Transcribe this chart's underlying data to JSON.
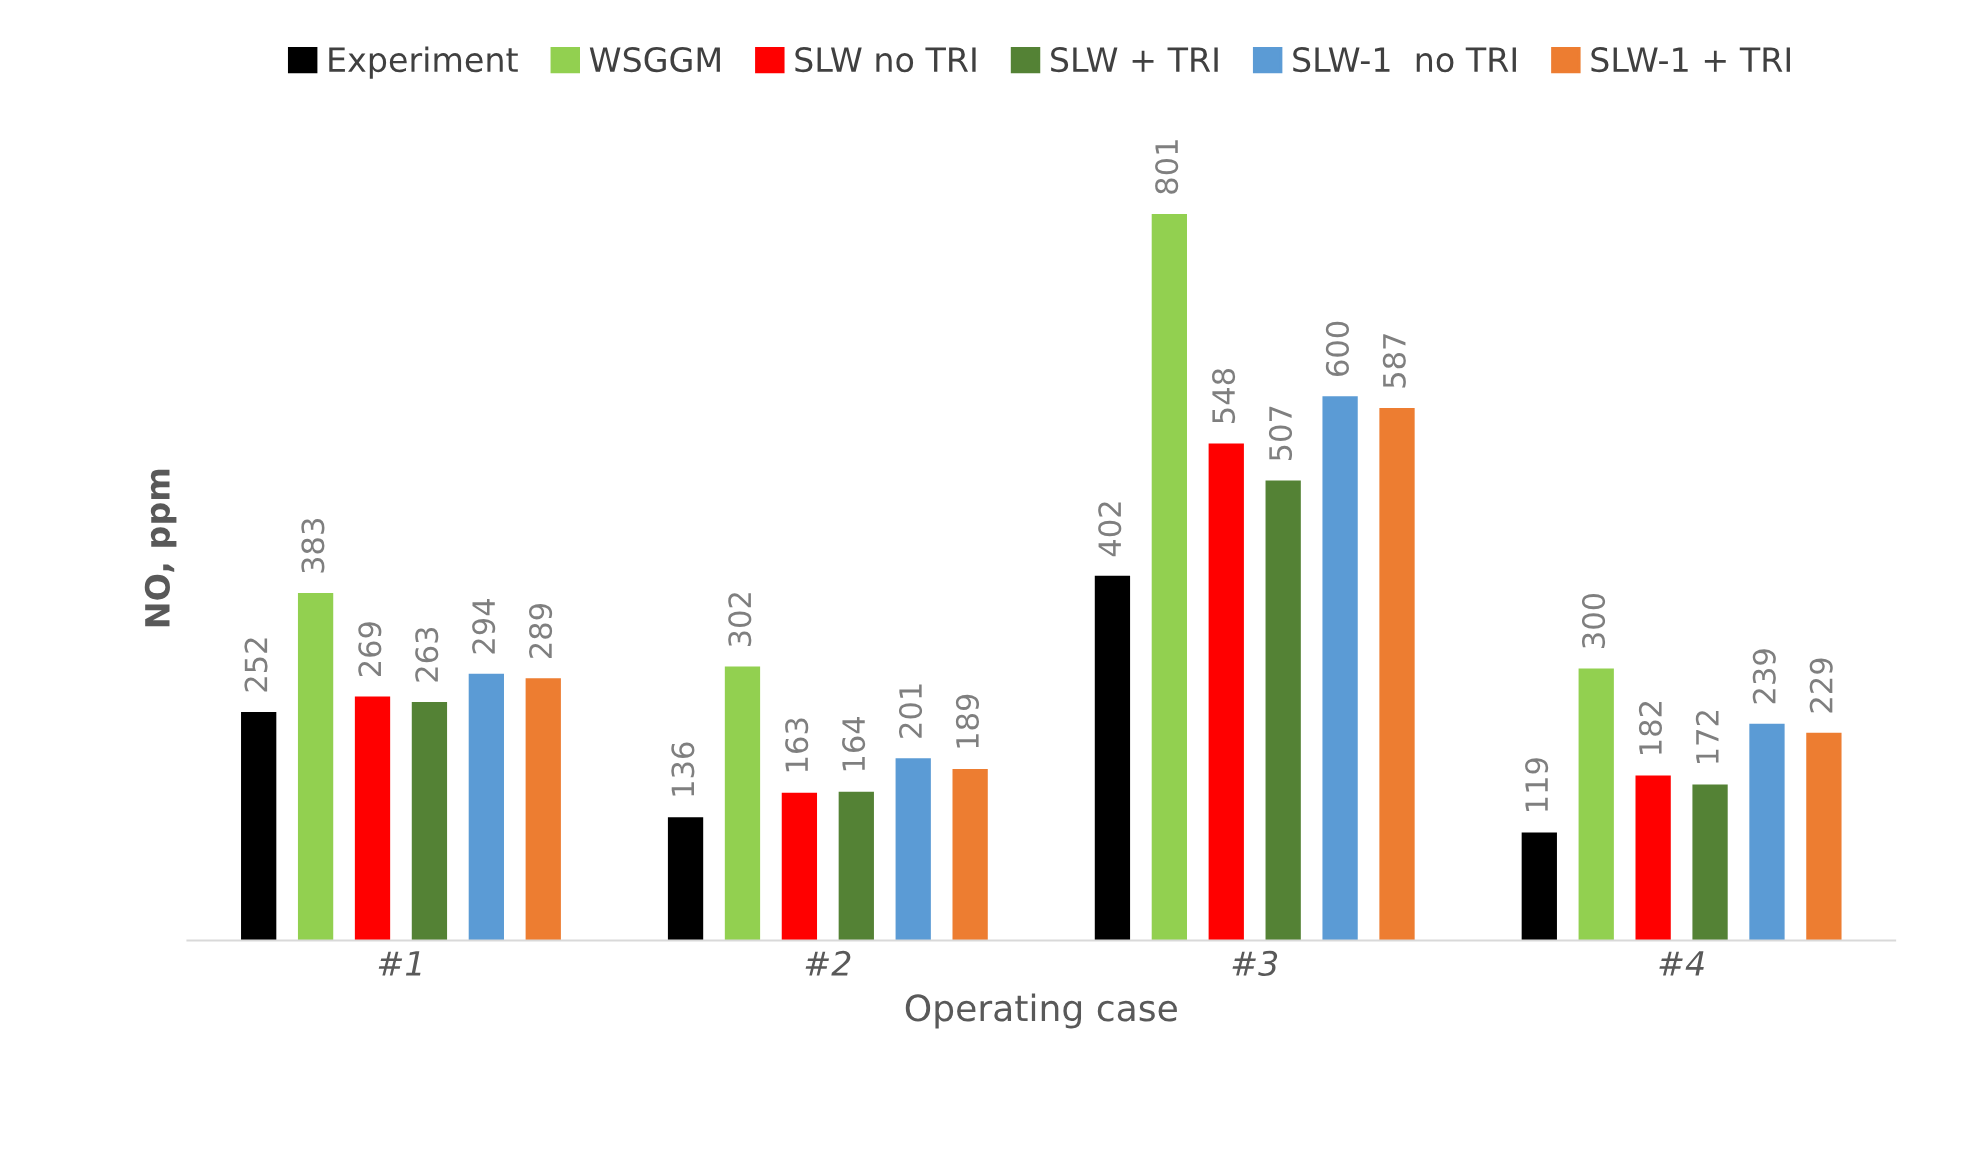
{
  "chart_data": {
    "type": "bar",
    "xlabel": "Operating case",
    "ylabel": "NO, ppm",
    "categories": [
      "#1",
      "#2",
      "#3",
      "#4"
    ],
    "series": [
      {
        "name": "Experiment",
        "color": "#000000",
        "values": [
          252,
          136,
          402,
          119
        ]
      },
      {
        "name": "WSGGM",
        "color": "#92d050",
        "values": [
          383,
          302,
          801,
          300
        ]
      },
      {
        "name": "SLW no TRI",
        "color": "#ff0000",
        "values": [
          269,
          163,
          548,
          182
        ]
      },
      {
        "name": "SLW + TRI",
        "color": "#548235",
        "values": [
          263,
          164,
          507,
          172
        ]
      },
      {
        "name": "SLW-1  no TRI",
        "color": "#5b9bd5",
        "values": [
          294,
          201,
          600,
          239
        ]
      },
      {
        "name": "SLW-1 + TRI",
        "color": "#ed7d31",
        "values": [
          289,
          189,
          587,
          229
        ]
      }
    ],
    "data_labels": true,
    "legend": "top",
    "tick_labels": "x",
    "grid": false
  }
}
